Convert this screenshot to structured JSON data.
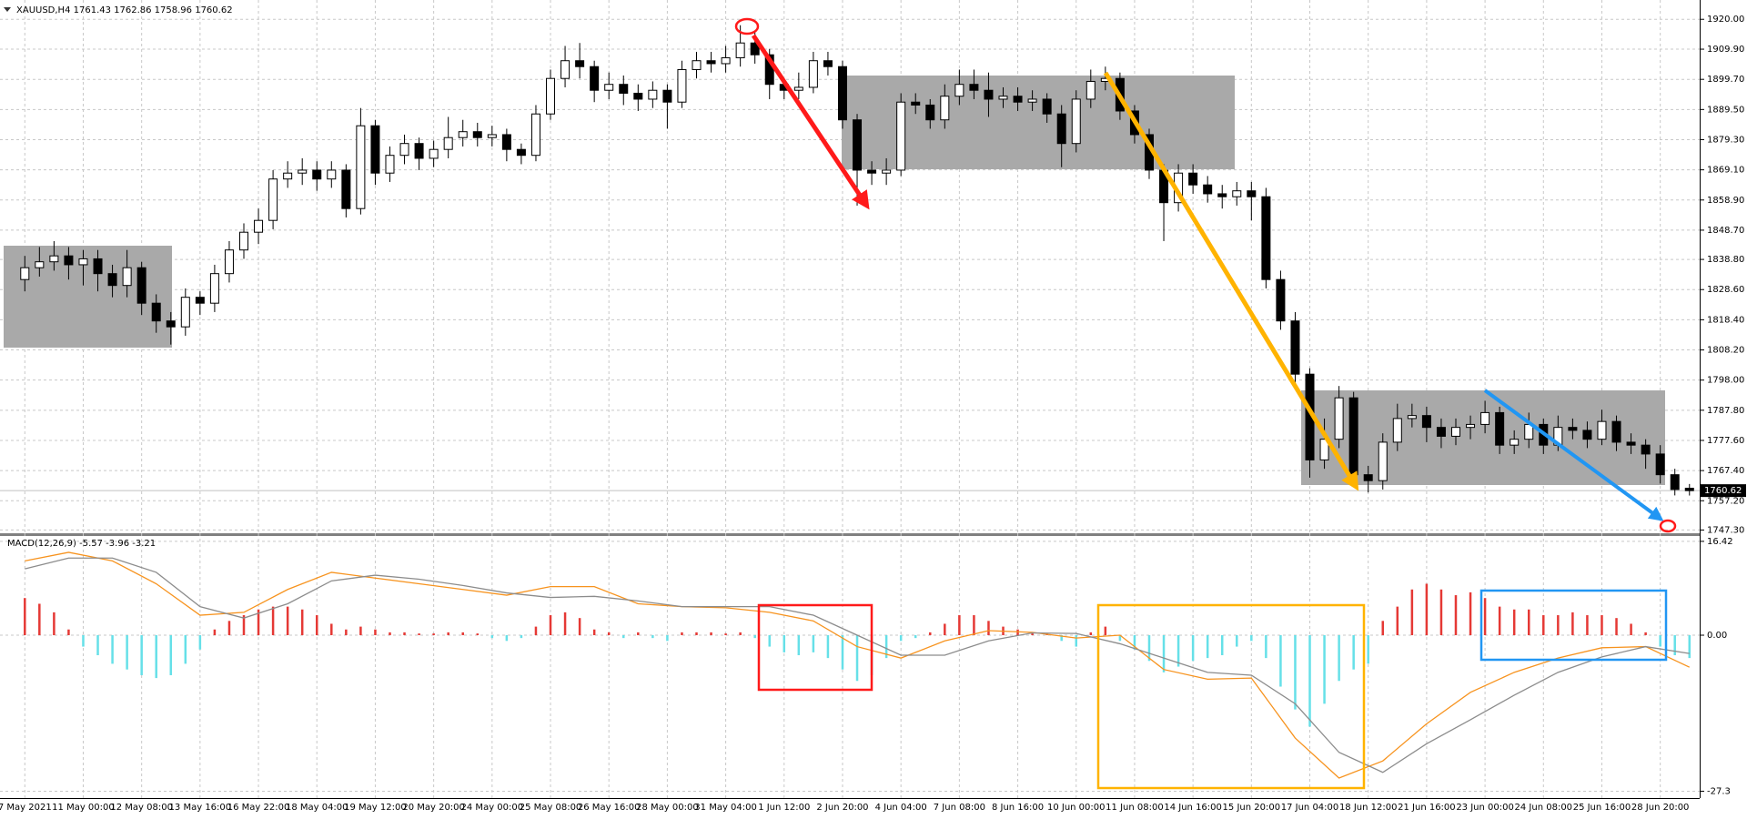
{
  "chart_data": [
    {
      "type": "candlestick",
      "title": "XAUUSD,H4  1761.43 1762.86 1758.96 1760.62",
      "last_price": 1760.62,
      "xlim": [
        -1.7,
        114.7
      ],
      "ylim": [
        1746.2,
        1925.3
      ],
      "grid": true,
      "up_color": "#ffffff",
      "down_color": "#000000",
      "yticks": [
        {
          "value": 1920,
          "label": "1920.00"
        },
        {
          "value": 1909.9,
          "label": "1909.90"
        },
        {
          "value": 1899.7,
          "label": "1899.70"
        },
        {
          "value": 1889.5,
          "label": "1889.50"
        },
        {
          "value": 1879.3,
          "label": "1879.30"
        },
        {
          "value": 1869.1,
          "label": "1869.10"
        },
        {
          "value": 1858.9,
          "label": "1858.90"
        },
        {
          "value": 1848.7,
          "label": "1848.70"
        },
        {
          "value": 1838.8,
          "label": "1838.80"
        },
        {
          "value": 1828.6,
          "label": "1828.60"
        },
        {
          "value": 1818.4,
          "label": "1818.40"
        },
        {
          "value": 1808.2,
          "label": "1808.20"
        },
        {
          "value": 1798,
          "label": "1798.00"
        },
        {
          "value": 1787.8,
          "label": "1787.80"
        },
        {
          "value": 1777.6,
          "label": "1777.60"
        },
        {
          "value": 1767.4,
          "label": "1767.40"
        },
        {
          "value": 1757.2,
          "label": "1757.20"
        },
        {
          "value": 1747.3,
          "label": "1747.30"
        }
      ],
      "candles": [
        [
          1832,
          1840,
          1828,
          1836
        ],
        [
          1836,
          1843,
          1833,
          1838
        ],
        [
          1838,
          1845,
          1835,
          1840
        ],
        [
          1840,
          1843,
          1832,
          1837
        ],
        [
          1837,
          1842,
          1830,
          1839
        ],
        [
          1839,
          1842,
          1828,
          1834
        ],
        [
          1834,
          1837,
          1826,
          1830
        ],
        [
          1830,
          1842,
          1826,
          1836
        ],
        [
          1836,
          1838,
          1820,
          1824
        ],
        [
          1824,
          1827,
          1814,
          1818
        ],
        [
          1818,
          1821,
          1810,
          1816
        ],
        [
          1816,
          1829,
          1813,
          1826
        ],
        [
          1826,
          1828,
          1820,
          1824
        ],
        [
          1824,
          1837,
          1821,
          1834
        ],
        [
          1834,
          1845,
          1831,
          1842
        ],
        [
          1842,
          1851,
          1839,
          1848
        ],
        [
          1848,
          1856,
          1844,
          1852
        ],
        [
          1852,
          1869,
          1849,
          1866
        ],
        [
          1866,
          1872,
          1863,
          1868
        ],
        [
          1868,
          1873,
          1864,
          1869
        ],
        [
          1869,
          1872,
          1862,
          1866
        ],
        [
          1866,
          1872,
          1863,
          1869
        ],
        [
          1869,
          1871,
          1853,
          1856
        ],
        [
          1856,
          1890,
          1854,
          1884
        ],
        [
          1884,
          1886,
          1864,
          1868
        ],
        [
          1868,
          1877,
          1865,
          1874
        ],
        [
          1874,
          1881,
          1871,
          1878
        ],
        [
          1878,
          1880,
          1869,
          1873
        ],
        [
          1873,
          1879,
          1870,
          1876
        ],
        [
          1876,
          1887,
          1873,
          1880
        ],
        [
          1880,
          1886,
          1877,
          1882
        ],
        [
          1882,
          1885,
          1877,
          1880
        ],
        [
          1880,
          1884,
          1877,
          1881
        ],
        [
          1881,
          1883,
          1872,
          1876
        ],
        [
          1876,
          1878,
          1871,
          1874
        ],
        [
          1874,
          1891,
          1872,
          1888
        ],
        [
          1888,
          1903,
          1886,
          1900
        ],
        [
          1900,
          1911,
          1897,
          1906
        ],
        [
          1906,
          1912,
          1900,
          1904
        ],
        [
          1904,
          1906,
          1892,
          1896
        ],
        [
          1896,
          1902,
          1893,
          1898
        ],
        [
          1898,
          1901,
          1891,
          1895
        ],
        [
          1895,
          1898,
          1889,
          1893
        ],
        [
          1893,
          1899,
          1890,
          1896
        ],
        [
          1896,
          1898,
          1883,
          1892
        ],
        [
          1892,
          1906,
          1890,
          1903
        ],
        [
          1903,
          1909,
          1900,
          1906
        ],
        [
          1906,
          1909,
          1902,
          1905
        ],
        [
          1905,
          1911,
          1902,
          1907
        ],
        [
          1907,
          1918,
          1904,
          1912
        ],
        [
          1912,
          1916,
          1905,
          1908
        ],
        [
          1908,
          1910,
          1893,
          1898
        ],
        [
          1898,
          1900,
          1893,
          1896
        ],
        [
          1896,
          1902,
          1893,
          1897
        ],
        [
          1897,
          1909,
          1895,
          1906
        ],
        [
          1906,
          1909,
          1901,
          1904
        ],
        [
          1904,
          1906,
          1883,
          1886
        ],
        [
          1886,
          1888,
          1857,
          1869
        ],
        [
          1869,
          1872,
          1864,
          1868
        ],
        [
          1868,
          1873,
          1864,
          1869
        ],
        [
          1869,
          1895,
          1867,
          1892
        ],
        [
          1892,
          1895,
          1888,
          1891
        ],
        [
          1891,
          1893,
          1883,
          1886
        ],
        [
          1886,
          1898,
          1883,
          1894
        ],
        [
          1894,
          1903,
          1891,
          1898
        ],
        [
          1898,
          1903,
          1893,
          1896
        ],
        [
          1896,
          1902,
          1887,
          1893
        ],
        [
          1893,
          1897,
          1890,
          1894
        ],
        [
          1894,
          1897,
          1889,
          1892
        ],
        [
          1892,
          1896,
          1889,
          1893
        ],
        [
          1893,
          1895,
          1885,
          1888
        ],
        [
          1888,
          1891,
          1870,
          1878
        ],
        [
          1878,
          1896,
          1875,
          1893
        ],
        [
          1893,
          1903,
          1890,
          1899
        ],
        [
          1899,
          1904,
          1896,
          1900
        ],
        [
          1900,
          1902,
          1886,
          1889
        ],
        [
          1889,
          1891,
          1878,
          1881
        ],
        [
          1881,
          1883,
          1866,
          1869
        ],
        [
          1869,
          1871,
          1845,
          1858
        ],
        [
          1858,
          1871,
          1855,
          1868
        ],
        [
          1868,
          1871,
          1861,
          1864
        ],
        [
          1864,
          1867,
          1858,
          1861
        ],
        [
          1861,
          1864,
          1856,
          1860
        ],
        [
          1860,
          1865,
          1857,
          1862
        ],
        [
          1862,
          1865,
          1852,
          1860
        ],
        [
          1860,
          1863,
          1829,
          1832
        ],
        [
          1832,
          1835,
          1815,
          1818
        ],
        [
          1818,
          1821,
          1797,
          1800
        ],
        [
          1800,
          1802,
          1765,
          1771
        ],
        [
          1771,
          1785,
          1768,
          1778
        ],
        [
          1778,
          1796,
          1775,
          1792
        ],
        [
          1792,
          1794,
          1762,
          1766
        ],
        [
          1766,
          1769,
          1760,
          1764
        ],
        [
          1764,
          1780,
          1761,
          1777
        ],
        [
          1777,
          1790,
          1774,
          1785
        ],
        [
          1785,
          1790,
          1782,
          1786
        ],
        [
          1786,
          1789,
          1777,
          1782
        ],
        [
          1782,
          1785,
          1775,
          1779
        ],
        [
          1779,
          1785,
          1776,
          1782
        ],
        [
          1782,
          1786,
          1778,
          1783
        ],
        [
          1783,
          1791,
          1780,
          1787
        ],
        [
          1787,
          1789,
          1773,
          1776
        ],
        [
          1776,
          1781,
          1773,
          1778
        ],
        [
          1778,
          1787,
          1775,
          1783
        ],
        [
          1783,
          1785,
          1773,
          1776
        ],
        [
          1776,
          1786,
          1774,
          1782
        ],
        [
          1782,
          1785,
          1778,
          1781
        ],
        [
          1781,
          1784,
          1775,
          1778
        ],
        [
          1778,
          1788,
          1776,
          1784
        ],
        [
          1784,
          1786,
          1774,
          1777
        ],
        [
          1777,
          1780,
          1773,
          1776
        ],
        [
          1776,
          1778,
          1768,
          1773
        ],
        [
          1773,
          1776,
          1763,
          1766
        ],
        [
          1766,
          1768,
          1759,
          1761
        ],
        [
          1761.43,
          1762.86,
          1758.96,
          1760.62
        ]
      ]
    },
    {
      "type": "macd",
      "title": "MACD(12,26,9) -5.57 -3.96 -3.21",
      "xlim": [
        -1.7,
        114.7
      ],
      "ylim": [
        -28.5,
        17.2
      ],
      "grid": true,
      "yticks": [
        16.42,
        {
          "value": 0,
          "label": "0.00"
        },
        -27.3
      ],
      "xticks": [
        {
          "value": 0,
          "label": "7 May 2021"
        },
        {
          "value": 4,
          "label": "11 May 00:00"
        },
        {
          "value": 8,
          "label": "12 May 08:00"
        },
        {
          "value": 12,
          "label": "13 May 16:00"
        },
        {
          "value": 16,
          "label": "16 May 22:00"
        },
        {
          "value": 20,
          "label": "18 May 04:00"
        },
        {
          "value": 24,
          "label": "19 May 12:00"
        },
        {
          "value": 28,
          "label": "20 May 20:00"
        },
        {
          "value": 32,
          "label": "24 May 00:00"
        },
        {
          "value": 36,
          "label": "25 May 08:00"
        },
        {
          "value": 40,
          "label": "26 May 16:00"
        },
        {
          "value": 44,
          "label": "28 May 00:00"
        },
        {
          "value": 48,
          "label": "31 May 04:00"
        },
        {
          "value": 52,
          "label": "1 Jun 12:00"
        },
        {
          "value": 56,
          "label": "2 Jun 20:00"
        },
        {
          "value": 60,
          "label": "4 Jun 04:00"
        },
        {
          "value": 64,
          "label": "7 Jun 08:00"
        },
        {
          "value": 68,
          "label": "8 Jun 16:00"
        },
        {
          "value": 72,
          "label": "10 Jun 00:00"
        },
        {
          "value": 76,
          "label": "11 Jun 08:00"
        },
        {
          "value": 80,
          "label": "14 Jun 16:00"
        },
        {
          "value": 84,
          "label": "15 Jun 20:00"
        },
        {
          "value": 88,
          "label": "17 Jun 04:00"
        },
        {
          "value": 92,
          "label": "18 Jun 12:00"
        },
        {
          "value": 96,
          "label": "21 Jun 16:00"
        },
        {
          "value": 100,
          "label": "23 Jun 00:00"
        },
        {
          "value": 104,
          "label": "24 Jun 08:00"
        },
        {
          "value": 108,
          "label": "25 Jun 16:00"
        },
        {
          "value": 112,
          "label": "28 Jun 20:00"
        }
      ],
      "histogram": {
        "up_color": "#e53935",
        "down_color": "#66e0e8",
        "values": [
          6.5,
          5.5,
          4,
          1,
          -2,
          -3.5,
          -5,
          -6,
          -7,
          -7.5,
          -7,
          -5,
          -2.5,
          1,
          2.5,
          3.5,
          4.5,
          5,
          5,
          4.5,
          3.5,
          2,
          1,
          1.5,
          1,
          0.5,
          0.5,
          0.3,
          0.3,
          0.5,
          0.5,
          0.3,
          -0.5,
          -1,
          -0.5,
          1.5,
          3.5,
          4,
          3,
          1,
          0.5,
          -0.5,
          0.5,
          -0.5,
          -1,
          0.5,
          0.5,
          0.5,
          0.3,
          0.5,
          -0.5,
          -2,
          -3,
          -3.5,
          -3,
          -4,
          -6,
          -8,
          -7,
          -4,
          -1,
          -0.5,
          0.5,
          2,
          3.5,
          3.5,
          2.5,
          1.5,
          1,
          0.5,
          0.3,
          -1,
          -2,
          0.5,
          1.5,
          -1,
          -2.5,
          -4.5,
          -6.5,
          -5.5,
          -4.5,
          -4,
          -3.5,
          -2,
          -1,
          -4,
          -9,
          -13,
          -16,
          -12,
          -8,
          -6,
          -5,
          2.5,
          5,
          8,
          9,
          8,
          7,
          7.5,
          6.5,
          5,
          4.5,
          4.5,
          3.5,
          3.5,
          4,
          3.5,
          3.5,
          3,
          2,
          0.5,
          -2,
          -3.5,
          -4
        ]
      },
      "series": [
        {
          "color": "#f7931e",
          "x": [
            0,
            3,
            6,
            9,
            12,
            15,
            18,
            21,
            24,
            27,
            30,
            33,
            36,
            39,
            42,
            45,
            48,
            51,
            54,
            57,
            60,
            63,
            66,
            69,
            72,
            75,
            78,
            81,
            84,
            87,
            90,
            93,
            96,
            99,
            102,
            105,
            108,
            111,
            114
          ],
          "values": [
            13,
            14.5,
            13,
            9,
            3.5,
            4,
            8,
            11,
            10,
            9,
            8,
            7,
            8.5,
            8.5,
            5.5,
            5,
            4.8,
            4,
            2.5,
            -2,
            -4,
            -1,
            0.8,
            0.5,
            -0.5,
            0,
            -6,
            -7.7,
            -7.5,
            -18,
            -25,
            -22,
            -15.5,
            -10,
            -6.5,
            -4,
            -2.2,
            -2,
            -5.6
          ]
        },
        {
          "color": "#8c8c8c",
          "x": [
            0,
            3,
            6,
            9,
            12,
            15,
            18,
            21,
            24,
            27,
            30,
            33,
            36,
            39,
            42,
            45,
            48,
            51,
            54,
            57,
            60,
            63,
            66,
            69,
            72,
            75,
            78,
            81,
            84,
            87,
            90,
            93,
            96,
            99,
            102,
            105,
            108,
            111,
            114
          ],
          "values": [
            11.6,
            13.5,
            13.5,
            11,
            5,
            3,
            5.5,
            9.5,
            10.5,
            9.8,
            8.7,
            7.4,
            6.6,
            6.8,
            6,
            5,
            5,
            5,
            3.5,
            0,
            -3.5,
            -3.5,
            -1,
            0.4,
            0.3,
            -1.5,
            -4,
            -6.5,
            -7,
            -12,
            -20.5,
            -24,
            -19,
            -14.8,
            -10.5,
            -6.5,
            -3.8,
            -2,
            -3.2
          ]
        }
      ]
    }
  ]
}
